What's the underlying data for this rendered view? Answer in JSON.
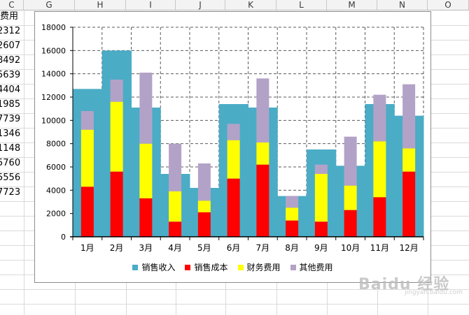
{
  "sheet": {
    "columns": [
      "C",
      "G",
      "H",
      "I",
      "J",
      "K",
      "L",
      "M",
      "N",
      "O"
    ],
    "visible_column_c_values": [
      "费用",
      "2312",
      "2607",
      "8492",
      "5639",
      "4404",
      "1985",
      "7739",
      "1346",
      "1148",
      "5760",
      "5556",
      "7723"
    ]
  },
  "chart_data": {
    "type": "bar",
    "categories": [
      "1月",
      "2月",
      "3月",
      "4月",
      "5月",
      "6月",
      "7月",
      "8月",
      "9月",
      "10月",
      "11月",
      "12月"
    ],
    "ylim": [
      0,
      18000
    ],
    "yticks": [
      "0",
      "2000",
      "4000",
      "6000",
      "8000",
      "10000",
      "12000",
      "14000",
      "16000",
      "18000"
    ],
    "grid": true,
    "legend_position": "bottom",
    "series": [
      {
        "name": "销售收入",
        "color": "#4bacc6",
        "values": [
          12700,
          16000,
          11100,
          5400,
          4200,
          11400,
          11100,
          3500,
          7500,
          6100,
          11400,
          10400
        ]
      },
      {
        "name": "销售成本",
        "color": "#ff0000",
        "values": [
          4300,
          5600,
          3300,
          1300,
          2100,
          5000,
          6200,
          1400,
          1300,
          2300,
          3400,
          5600
        ]
      },
      {
        "name": "财务费用",
        "color": "#ffff00",
        "values": [
          4900,
          6000,
          4700,
          2600,
          1000,
          3300,
          1900,
          1100,
          4100,
          2100,
          4800,
          2000
        ]
      },
      {
        "name": "其他费用",
        "color": "#b3a2c7",
        "values": [
          1600,
          1900,
          6100,
          4100,
          3200,
          1400,
          5500,
          1000,
          800,
          4200,
          4000,
          5500
        ]
      }
    ]
  },
  "watermark": {
    "text": "Baidu 经验",
    "sub": "jingyan.baidu.com"
  }
}
